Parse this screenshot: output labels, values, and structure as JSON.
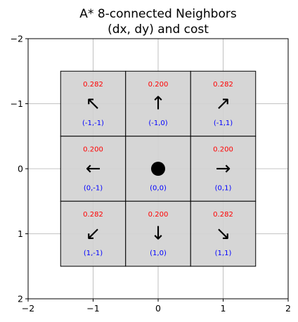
{
  "chart_data": {
    "type": "heatmap",
    "title_lines": [
      "A* 8-connected Neighbors",
      "(dx, dy) and cost"
    ],
    "xlabel": "",
    "ylabel": "",
    "xlim": [
      -2,
      2
    ],
    "ylim": [
      2,
      -2
    ],
    "x_ticks": [
      -2,
      -1,
      0,
      1,
      2
    ],
    "y_ticks": [
      -2,
      -1,
      0,
      1,
      2
    ],
    "x_tick_labels": [
      "−2",
      "−1",
      "0",
      "1",
      "2"
    ],
    "y_tick_labels": [
      "−2",
      "−1",
      "0",
      "1",
      "2"
    ],
    "grid": true,
    "cell_color": "#d3d3d3",
    "cost_color": "#ff0000",
    "offset_color": "#0000ff",
    "center_marker": "filled-circle",
    "cells": [
      {
        "dx": -1,
        "dy": -1,
        "arrow": "↖",
        "icon": "arrow-up-left-icon",
        "cost": "0.282",
        "offset": "(-1,-1)"
      },
      {
        "dx": -1,
        "dy": 0,
        "arrow": "↑",
        "icon": "arrow-up-icon",
        "cost": "0.200",
        "offset": "(-1,0)"
      },
      {
        "dx": -1,
        "dy": 1,
        "arrow": "↗",
        "icon": "arrow-up-right-icon",
        "cost": "0.282",
        "offset": "(-1,1)"
      },
      {
        "dx": 0,
        "dy": -1,
        "arrow": "←",
        "icon": "arrow-left-icon",
        "cost": "0.200",
        "offset": "(0,-1)"
      },
      {
        "dx": 0,
        "dy": 0,
        "arrow": "",
        "icon": "center-dot-icon",
        "cost": "",
        "offset": "(0,0)"
      },
      {
        "dx": 0,
        "dy": 1,
        "arrow": "→",
        "icon": "arrow-right-icon",
        "cost": "0.200",
        "offset": "(0,1)"
      },
      {
        "dx": 1,
        "dy": -1,
        "arrow": "↙",
        "icon": "arrow-down-left-icon",
        "cost": "0.282",
        "offset": "(1,-1)"
      },
      {
        "dx": 1,
        "dy": 0,
        "arrow": "↓",
        "icon": "arrow-down-icon",
        "cost": "0.200",
        "offset": "(1,0)"
      },
      {
        "dx": 1,
        "dy": 1,
        "arrow": "↘",
        "icon": "arrow-down-right-icon",
        "cost": "0.282",
        "offset": "(1,1)"
      }
    ]
  }
}
